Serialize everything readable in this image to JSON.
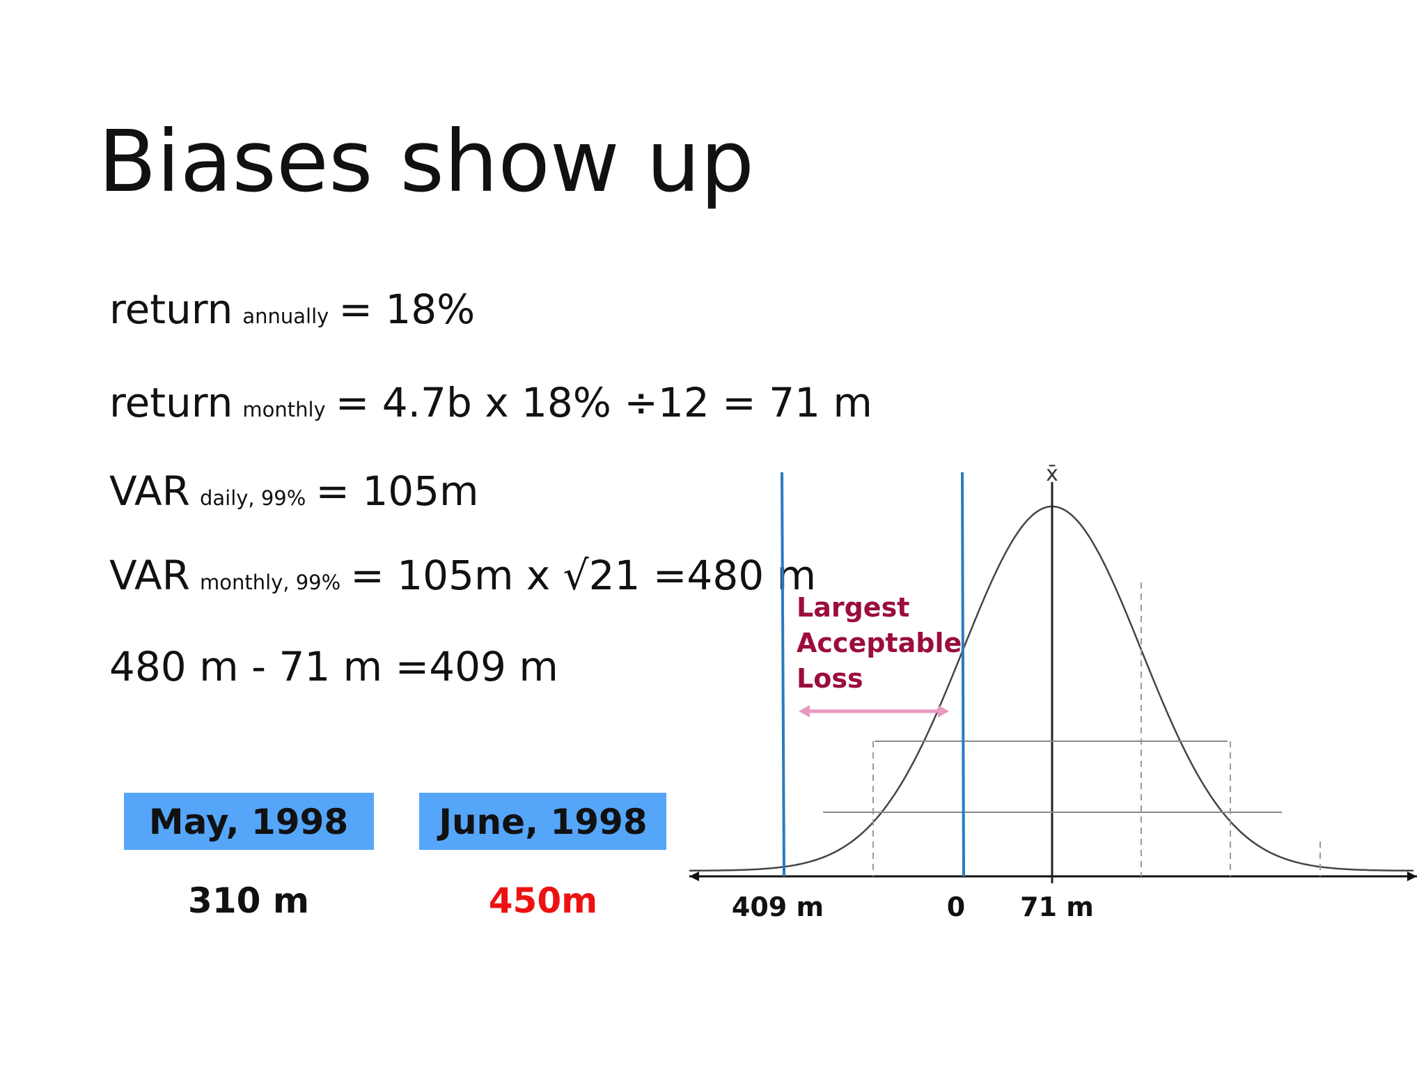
{
  "title": "Biases show up",
  "formulas": [
    {
      "main": "return",
      "sub": "annually",
      "rest": "= 18%"
    },
    {
      "main": "return",
      "sub": "monthly",
      "rest": "= 4.7b x 18% ÷12 = 71 m"
    },
    {
      "main": "VAR",
      "sub": "daily, 99%",
      "rest": "= 105m"
    },
    {
      "main": "VAR",
      "sub": "monthly, 99%",
      "rest": "= 105m x √21 =480 m"
    },
    {
      "main": "480 m - 71 m =409 m"
    }
  ],
  "boxes": [
    {
      "label": "May, 1998",
      "amount": "310 m",
      "amount_color": "#111111"
    },
    {
      "label": "June, 1998",
      "amount": "450m",
      "amount_color": "#ee1111"
    }
  ],
  "diagram": {
    "mean_symbol": "x̄",
    "note": [
      "Largest",
      "Acceptable",
      "Loss"
    ],
    "axis_labels": [
      "409 m",
      "0",
      "71 m"
    ]
  }
}
